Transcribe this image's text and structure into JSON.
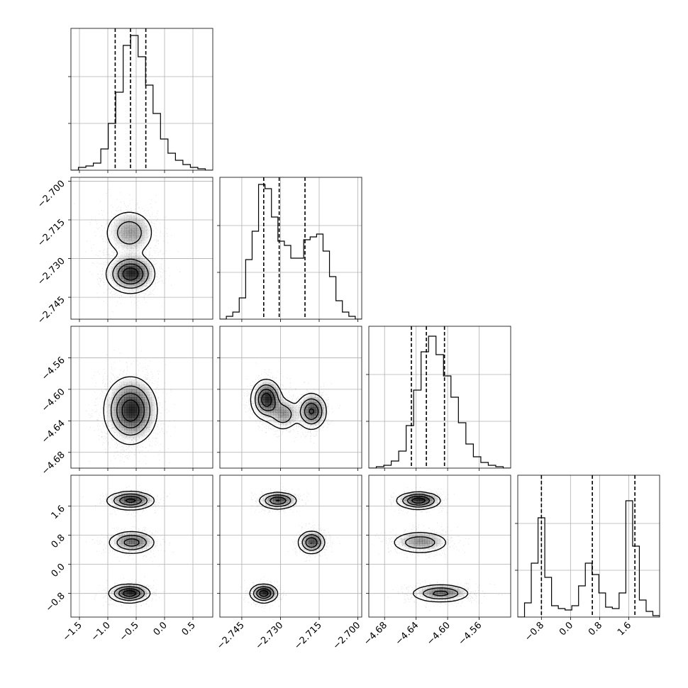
{
  "chart_data": {
    "type": "corner",
    "grid": true,
    "params": [
      {
        "range": [
          -1.65,
          0.85
        ],
        "ticks": [
          -1.5,
          -1.0,
          -0.5,
          0.0,
          0.5
        ],
        "tick_labels": [
          "−1.5",
          "−1.0",
          "−0.5",
          "0.0",
          "0.5"
        ],
        "quantiles": [
          -0.87,
          -0.6,
          -0.33
        ],
        "hist": [
          0,
          0.02,
          0.03,
          0.05,
          0.15,
          0.33,
          0.55,
          0.88,
          0.95,
          0.8,
          0.6,
          0.4,
          0.22,
          0.12,
          0.07,
          0.04,
          0.02,
          0.01,
          0
        ],
        "modes": [
          {
            "c": -0.6,
            "s": 0.22,
            "w": 1
          }
        ]
      },
      {
        "range": [
          -2.7535,
          -2.6985
        ],
        "ticks": [
          -2.745,
          -2.73,
          -2.715,
          -2.7
        ],
        "tick_labels": [
          "−2.745",
          "−2.730",
          "−2.715",
          "−2.700"
        ],
        "quantiles": [
          -2.7365,
          -2.7305,
          -2.7205
        ],
        "hist": [
          0,
          0.02,
          0.05,
          0.15,
          0.42,
          0.62,
          0.95,
          0.92,
          0.72,
          0.55,
          0.52,
          0.43,
          0.43,
          0.56,
          0.58,
          0.6,
          0.48,
          0.3,
          0.13,
          0.05,
          0.02,
          0
        ],
        "modes": [
          {
            "c": -2.736,
            "s": 0.003,
            "w": 0.6
          },
          {
            "c": -2.718,
            "s": 0.003,
            "w": 0.4
          }
        ]
      },
      {
        "range": [
          -4.7,
          -4.52
        ],
        "ticks": [
          -4.68,
          -4.64,
          -4.6,
          -4.56
        ],
        "tick_labels": [
          "−4.68",
          "−4.64",
          "−4.60",
          "−4.56"
        ],
        "quantiles": [
          -4.646,
          -4.627,
          -4.604
        ],
        "hist": [
          0,
          0.01,
          0.02,
          0.05,
          0.12,
          0.3,
          0.55,
          0.82,
          0.93,
          0.8,
          0.65,
          0.5,
          0.32,
          0.17,
          0.08,
          0.04,
          0.02,
          0.01,
          0
        ],
        "modes": [
          {
            "c": -4.627,
            "s": 0.02,
            "w": 1
          }
        ]
      },
      {
        "range": [
          -1.45,
          2.45
        ],
        "ticks": [
          -0.8,
          0.0,
          0.8,
          1.6
        ],
        "tick_labels": [
          "−0.8",
          "0.0",
          "0.8",
          "1.6"
        ],
        "quantiles": [
          -0.8,
          0.6,
          1.77
        ],
        "hist": [
          0,
          0.1,
          0.38,
          0.7,
          0.28,
          0.08,
          0.06,
          0.05,
          0.08,
          0.22,
          0.38,
          0.3,
          0.17,
          0.07,
          0.06,
          0.17,
          0.82,
          0.5,
          0.12,
          0.04,
          0.01
        ],
        "modes": [
          {
            "c": -0.8,
            "s": 0.12,
            "w": 0.33
          },
          {
            "c": 0.6,
            "s": 0.14,
            "w": 0.33
          },
          {
            "c": 1.75,
            "s": 0.11,
            "w": 0.34
          }
        ]
      }
    ],
    "pairs": [
      {
        "row": 1,
        "col": 0,
        "blobs": [
          {
            "x": -0.62,
            "y": -2.72,
            "sx": 0.22,
            "sy": 0.0045,
            "w": 0.4
          },
          {
            "x": -0.6,
            "y": -2.736,
            "sx": 0.2,
            "sy": 0.0035,
            "w": 0.6
          }
        ]
      },
      {
        "row": 2,
        "col": 0,
        "blobs": [
          {
            "x": -0.6,
            "y": -4.627,
            "sx": 0.22,
            "sy": 0.02,
            "w": 1
          }
        ]
      },
      {
        "row": 2,
        "col": 1,
        "blobs": [
          {
            "x": -2.7355,
            "y": -4.613,
            "sx": 0.0028,
            "sy": 0.012,
            "w": 0.45
          },
          {
            "x": -2.729,
            "y": -4.632,
            "sx": 0.003,
            "sy": 0.01,
            "w": 0.2
          },
          {
            "x": -2.718,
            "y": -4.628,
            "sx": 0.0028,
            "sy": 0.011,
            "w": 0.35
          }
        ]
      },
      {
        "row": 3,
        "col": 0,
        "blobs": [
          {
            "x": -0.6,
            "y": 1.75,
            "sx": 0.2,
            "sy": 0.12,
            "w": 0.34
          },
          {
            "x": -0.58,
            "y": 0.6,
            "sx": 0.2,
            "sy": 0.15,
            "w": 0.33
          },
          {
            "x": -0.62,
            "y": -0.8,
            "sx": 0.17,
            "sy": 0.12,
            "w": 0.33
          }
        ]
      },
      {
        "row": 3,
        "col": 1,
        "blobs": [
          {
            "x": -2.731,
            "y": 1.75,
            "sx": 0.0035,
            "sy": 0.11,
            "w": 0.34
          },
          {
            "x": -2.718,
            "y": 0.6,
            "sx": 0.0025,
            "sy": 0.15,
            "w": 0.33
          },
          {
            "x": -2.7365,
            "y": -0.8,
            "sx": 0.0025,
            "sy": 0.12,
            "w": 0.33
          }
        ]
      },
      {
        "row": 3,
        "col": 2,
        "blobs": [
          {
            "x": -4.637,
            "y": 1.75,
            "sx": 0.013,
            "sy": 0.11,
            "w": 0.34
          },
          {
            "x": -4.635,
            "y": 0.6,
            "sx": 0.018,
            "sy": 0.15,
            "w": 0.33
          },
          {
            "x": -4.609,
            "y": -0.8,
            "sx": 0.018,
            "sy": 0.12,
            "w": 0.33
          }
        ]
      }
    ]
  }
}
